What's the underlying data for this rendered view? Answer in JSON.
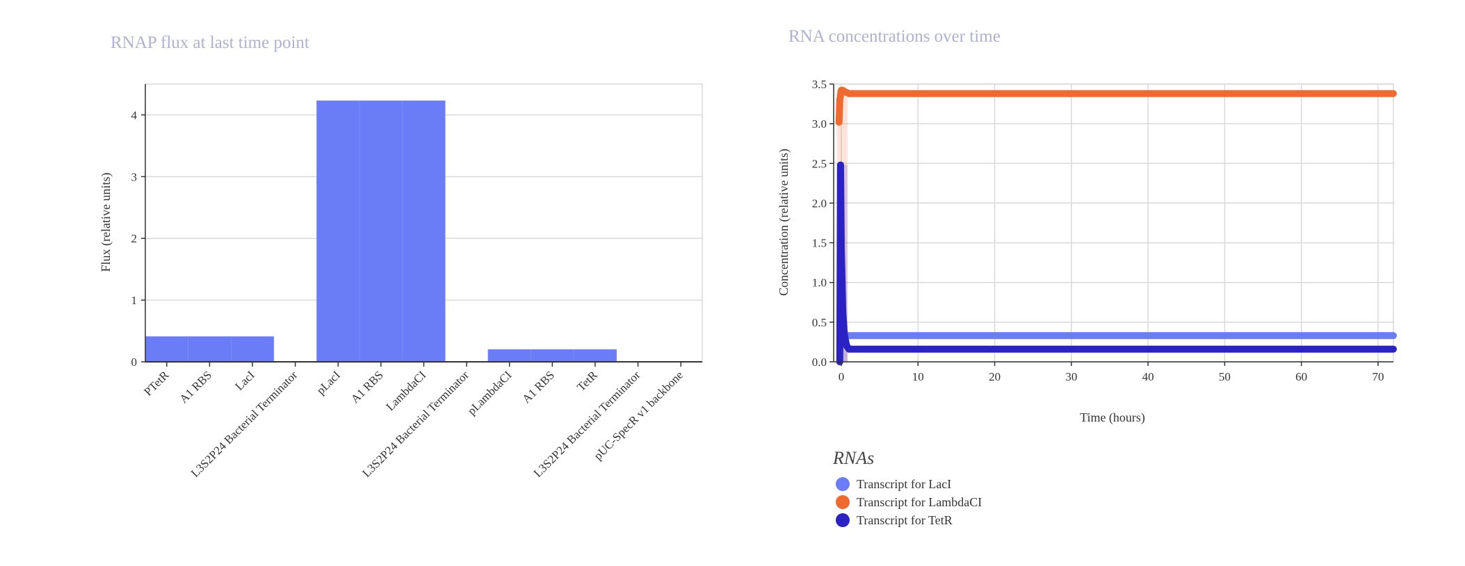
{
  "chart_data": [
    {
      "type": "bar",
      "title": "RNAP flux at last time point",
      "xlabel": "",
      "ylabel": "Flux (relative units)",
      "ylim": [
        0,
        4.5
      ],
      "yticks": [
        0,
        1,
        2,
        3,
        4
      ],
      "grid": true,
      "bar_color": "#6a7cf6",
      "categories": [
        "PTetR",
        "A1 RBS",
        "LacI",
        "L3S2P24 Bacterial Terminator",
        "pLacI",
        "A1 RBS",
        "LambdaCI",
        "L3S2P24 Bacterial Terminator",
        "pLambdaCI",
        "A1 RBS",
        "TetR",
        "L3S2P24 Bacterial Terminator",
        "pUC-SpecR v1 backbone"
      ],
      "values": [
        0.41,
        0.41,
        0.41,
        0,
        4.23,
        4.23,
        4.23,
        0,
        0.2,
        0.2,
        0.2,
        0,
        0
      ]
    },
    {
      "type": "line",
      "title": "RNA concentrations over time",
      "xlabel": "Time (hours)",
      "ylabel": "Concentration (relative units)",
      "xlim": [
        -1,
        72
      ],
      "ylim": [
        0,
        3.5
      ],
      "xticks": [
        0,
        10,
        20,
        30,
        40,
        50,
        60,
        70
      ],
      "yticks": [
        "0.0",
        "0.5",
        "1.0",
        "1.5",
        "2.0",
        "2.5",
        "3.0",
        "3.5"
      ],
      "grid": true,
      "legend_title": "RNAs",
      "legend_position": "bottom-left",
      "series": [
        {
          "name": "Transcript for LacI",
          "color": "#6a7cf6",
          "x": [
            0,
            0.1,
            0.2,
            0.4,
            0.6,
            1,
            2,
            5,
            10,
            20,
            30,
            40,
            50,
            60,
            72
          ],
          "y": [
            0.3,
            0.32,
            0.33,
            0.33,
            0.33,
            0.33,
            0.33,
            0.33,
            0.33,
            0.33,
            0.33,
            0.33,
            0.33,
            0.33,
            0.33
          ]
        },
        {
          "name": "Transcript for LambdaCI",
          "color": "#f06a30",
          "x": [
            -0.3,
            -0.2,
            0,
            0.2,
            0.5,
            1,
            2,
            5,
            10,
            20,
            30,
            40,
            50,
            60,
            72
          ],
          "y": [
            3.02,
            3.3,
            3.42,
            3.42,
            3.4,
            3.38,
            3.38,
            3.38,
            3.38,
            3.38,
            3.38,
            3.38,
            3.38,
            3.38,
            3.38
          ]
        },
        {
          "name": "Transcript for TetR",
          "color": "#2b22c4",
          "x": [
            -0.2,
            -0.1,
            0,
            0.2,
            0.4,
            0.7,
            1,
            2,
            5,
            10,
            20,
            30,
            40,
            50,
            60,
            72
          ],
          "y": [
            0.0,
            2.48,
            1.42,
            0.62,
            0.34,
            0.2,
            0.16,
            0.16,
            0.16,
            0.16,
            0.16,
            0.16,
            0.16,
            0.16,
            0.16,
            0.16
          ]
        }
      ]
    }
  ],
  "colors": {
    "title": "#aeb1cf",
    "grid": "#d9d9d9",
    "axis": "#333333"
  }
}
